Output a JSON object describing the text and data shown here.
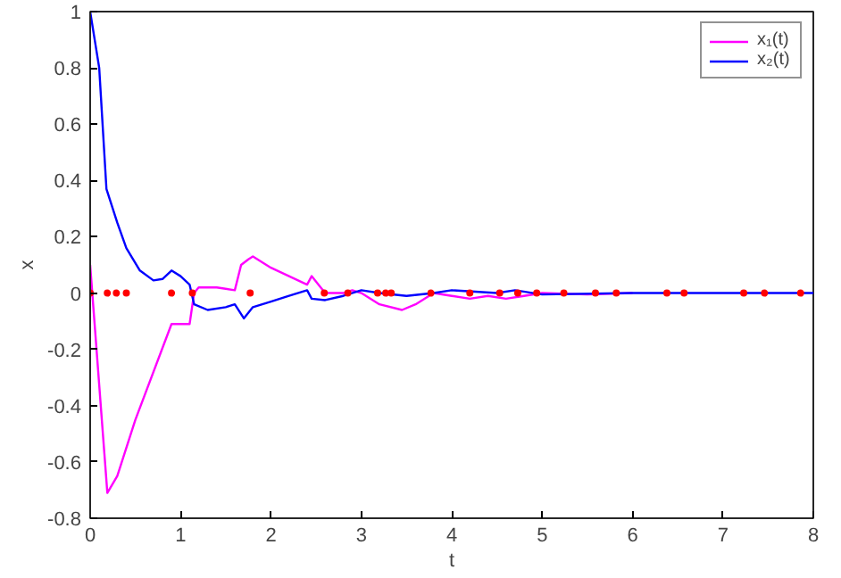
{
  "chart_data": {
    "type": "line",
    "xlabel": "t",
    "ylabel": "x",
    "xlim": [
      0,
      8
    ],
    "ylim": [
      -0.8,
      1
    ],
    "xticks": [
      0,
      1,
      2,
      3,
      4,
      5,
      6,
      7,
      8
    ],
    "yticks": [
      -0.8,
      -0.6,
      -0.4,
      -0.2,
      0,
      0.2,
      0.4,
      0.6,
      0.8,
      1
    ],
    "grid": false,
    "legend": "top right",
    "line_style": "solid",
    "series": [
      {
        "name": "x₁(t)",
        "color": "#ff00ff",
        "x": [
          0,
          0.19,
          0.3,
          0.5,
          0.9,
          1.1,
          1.15,
          1.2,
          1.4,
          1.6,
          1.67,
          1.75,
          1.8,
          2.0,
          2.2,
          2.4,
          2.45,
          2.55,
          2.6,
          2.8,
          2.9,
          3.0,
          3.2,
          3.45,
          3.6,
          3.8,
          4.0,
          4.2,
          4.4,
          4.6,
          4.8,
          5.0,
          5.5,
          6
        ],
        "values": [
          0.1,
          -0.71,
          -0.65,
          -0.45,
          -0.11,
          -0.11,
          0.0,
          0.02,
          0.02,
          0.01,
          0.1,
          0.12,
          0.13,
          0.09,
          0.06,
          0.03,
          0.06,
          0.02,
          0.0,
          0.0,
          0.01,
          0.0,
          -0.04,
          -0.06,
          -0.04,
          0.0,
          -0.01,
          -0.02,
          -0.01,
          -0.02,
          -0.01,
          0.0,
          -0.005,
          0
        ]
      },
      {
        "name": "x₂(t)",
        "color": "#0000ff",
        "x": [
          0,
          0.1,
          0.18,
          0.3,
          0.4,
          0.55,
          0.7,
          0.8,
          0.9,
          1.0,
          1.1,
          1.15,
          1.3,
          1.5,
          1.6,
          1.7,
          1.8,
          2.0,
          2.2,
          2.4,
          2.45,
          2.6,
          2.8,
          3.0,
          3.2,
          3.5,
          3.8,
          4.0,
          4.5,
          4.7,
          5.0,
          6,
          8
        ],
        "values": [
          1,
          0.8,
          0.37,
          0.25,
          0.16,
          0.08,
          0.045,
          0.05,
          0.08,
          0.06,
          0.03,
          -0.04,
          -0.06,
          -0.05,
          -0.04,
          -0.09,
          -0.05,
          -0.03,
          -0.01,
          0.01,
          -0.02,
          -0.025,
          -0.01,
          0.01,
          0.0,
          -0.01,
          0.0,
          0.01,
          0.0,
          0.01,
          -0.005,
          0,
          0
        ]
      },
      {
        "type": "scatter",
        "marker": "circle",
        "color": "#ff0000",
        "x": [
          0,
          0.19,
          0.29,
          0.4,
          0.9,
          1.13,
          1.77,
          2.59,
          2.85,
          3.18,
          3.27,
          3.33,
          3.77,
          4.2,
          4.53,
          4.73,
          4.94,
          5.24,
          5.59,
          5.82,
          6.38,
          6.57,
          7.23,
          7.46,
          7.86
        ],
        "values": [
          0,
          0,
          0,
          0,
          0,
          0,
          0,
          0,
          0,
          0,
          0,
          0,
          0,
          0,
          0,
          0,
          0,
          0,
          0,
          0,
          0,
          0,
          0,
          0,
          0
        ]
      }
    ]
  }
}
